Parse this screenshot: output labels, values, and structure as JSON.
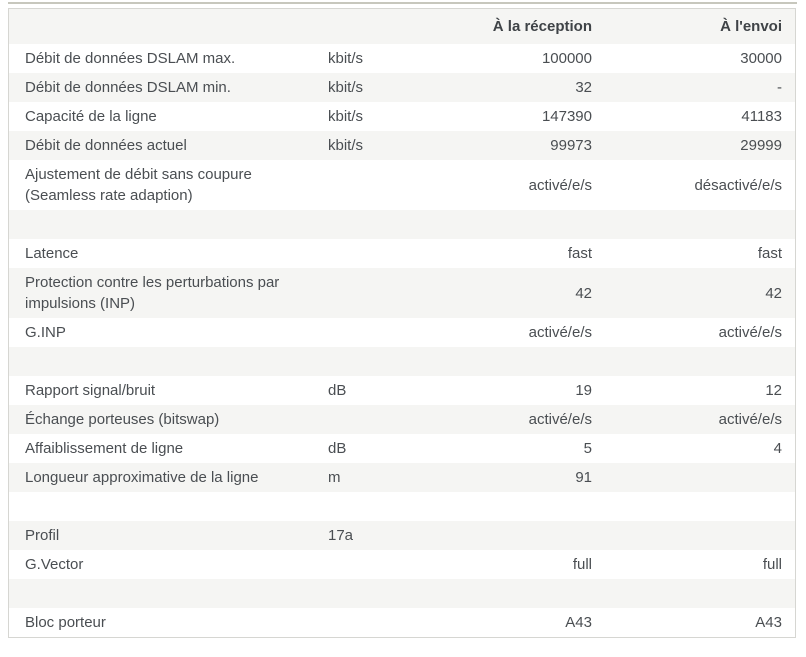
{
  "page": {
    "background": "#ffffff",
    "divider_color": "#c7c7bd"
  },
  "table": {
    "stripe_color": "#f5f5f3",
    "border_color": "#d6d6d2",
    "text_color": "#4a4e52",
    "header": {
      "col_label": "",
      "col_unit": "",
      "col_reception": "À la réception",
      "col_envoi": "À l'envoi"
    },
    "rows": [
      {
        "label": "Débit de données DSLAM max.",
        "unit": "kbit/s",
        "reception": "100000",
        "envoi": "30000"
      },
      {
        "label": "Débit de données DSLAM min.",
        "unit": "kbit/s",
        "reception": "32",
        "envoi": "-"
      },
      {
        "label": "Capacité de la ligne",
        "unit": "kbit/s",
        "reception": "147390",
        "envoi": "41183"
      },
      {
        "label": "Débit de données actuel",
        "unit": "kbit/s",
        "reception": "99973",
        "envoi": "29999"
      },
      {
        "label": "Ajustement de débit sans coupure (Seamless rate adaption)",
        "unit": "",
        "reception": "activé/e/s",
        "envoi": "désactivé/e/s"
      },
      {
        "spacer": true,
        "label": "",
        "unit": "",
        "reception": "",
        "envoi": ""
      },
      {
        "label": "Latence",
        "unit": "",
        "reception": "fast",
        "envoi": "fast"
      },
      {
        "label": "Protection contre les perturbations par impulsions (INP)",
        "unit": "",
        "reception": "42",
        "envoi": "42"
      },
      {
        "label": "G.INP",
        "unit": "",
        "reception": "activé/e/s",
        "envoi": "activé/e/s"
      },
      {
        "spacer": true,
        "label": "",
        "unit": "",
        "reception": "",
        "envoi": ""
      },
      {
        "label": "Rapport signal/bruit",
        "unit": "dB",
        "reception": "19",
        "envoi": "12"
      },
      {
        "label": "Échange porteuses (bitswap)",
        "unit": "",
        "reception": "activé/e/s",
        "envoi": "activé/e/s"
      },
      {
        "label": "Affaiblissement de ligne",
        "unit": "dB",
        "reception": "5",
        "envoi": "4"
      },
      {
        "label": "Longueur approximative de la ligne",
        "unit": "m",
        "reception": "91",
        "envoi": ""
      },
      {
        "spacer": true,
        "label": "",
        "unit": "",
        "reception": "",
        "envoi": ""
      },
      {
        "label": "Profil",
        "unit": "17a",
        "reception": "",
        "envoi": ""
      },
      {
        "label": "G.Vector",
        "unit": "",
        "reception": "full",
        "envoi": "full"
      },
      {
        "spacer": true,
        "label": "",
        "unit": "",
        "reception": "",
        "envoi": ""
      },
      {
        "label": "Bloc porteur",
        "unit": "",
        "reception": "A43",
        "envoi": "A43"
      }
    ]
  }
}
